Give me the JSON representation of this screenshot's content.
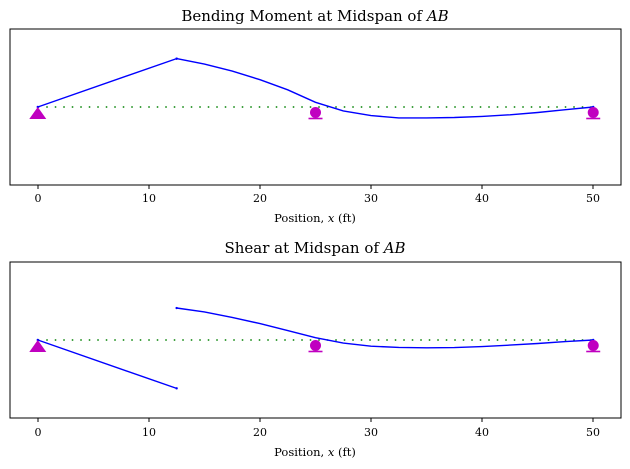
{
  "chart_data": [
    {
      "type": "line",
      "title": "Bending Moment at Midspan of",
      "title_var": "AB",
      "xlabel_prefix": "Position, ",
      "xlabel_var": "x",
      "xlabel_unit": " (ft)",
      "ylabel": "",
      "xlim": [
        -2.5,
        52.5
      ],
      "ylim": [
        -1.0,
        1.0
      ],
      "xticks": [
        0,
        10,
        20,
        30,
        40,
        50
      ],
      "xtick_labels": [
        "0",
        "10",
        "20",
        "30",
        "40",
        "50"
      ],
      "series": [
        {
          "name": "influence-line-segment-1",
          "color": "#0000ff",
          "x": [
            0,
            12.5
          ],
          "y": [
            0,
            0.62
          ]
        },
        {
          "name": "influence-line-segment-2",
          "color": "#0000ff",
          "x": [
            12.5,
            15,
            17.5,
            20,
            22.5,
            25,
            27.5,
            30,
            32.5,
            35,
            37.5,
            40,
            42.5,
            45,
            47.5,
            50
          ],
          "y": [
            0.62,
            0.55,
            0.46,
            0.35,
            0.22,
            0.06,
            -0.05,
            -0.11,
            -0.14,
            -0.14,
            -0.135,
            -0.12,
            -0.1,
            -0.07,
            -0.035,
            0
          ]
        }
      ],
      "baseline": {
        "x": [
          0,
          50
        ],
        "y": 0,
        "color": "#008000",
        "style": "dotted"
      },
      "supports": [
        {
          "type": "pin",
          "x": 0,
          "color": "#c000c0"
        },
        {
          "type": "roller",
          "x": 25,
          "color": "#c000c0"
        },
        {
          "type": "roller",
          "x": 50,
          "color": "#c000c0"
        }
      ]
    },
    {
      "type": "line",
      "title": "Shear at Midspan of",
      "title_var": "AB",
      "xlabel_prefix": "Position, ",
      "xlabel_var": "x",
      "xlabel_unit": " (ft)",
      "ylabel": "",
      "xlim": [
        -2.5,
        52.5
      ],
      "ylim": [
        -1.0,
        1.0
      ],
      "xticks": [
        0,
        10,
        20,
        30,
        40,
        50
      ],
      "xtick_labels": [
        "0",
        "10",
        "20",
        "30",
        "40",
        "50"
      ],
      "series": [
        {
          "name": "influence-line-segment-1",
          "color": "#0000ff",
          "x": [
            0,
            12.5
          ],
          "y": [
            0,
            -0.62
          ]
        },
        {
          "name": "influence-line-segment-2",
          "color": "#0000ff",
          "x": [
            12.5,
            15,
            17.5,
            20,
            22.5,
            25,
            27.5,
            30,
            32.5,
            35,
            37.5,
            40,
            42.5,
            45,
            47.5,
            50
          ],
          "y": [
            0.41,
            0.36,
            0.29,
            0.21,
            0.12,
            0.03,
            -0.04,
            -0.08,
            -0.095,
            -0.1,
            -0.097,
            -0.085,
            -0.065,
            -0.045,
            -0.02,
            0
          ]
        }
      ],
      "baseline": {
        "x": [
          0,
          50
        ],
        "y": 0,
        "color": "#008000",
        "style": "dotted"
      },
      "supports": [
        {
          "type": "pin",
          "x": 0,
          "color": "#c000c0"
        },
        {
          "type": "roller",
          "x": 25,
          "color": "#c000c0"
        },
        {
          "type": "roller",
          "x": 50,
          "color": "#c000c0"
        }
      ]
    }
  ]
}
